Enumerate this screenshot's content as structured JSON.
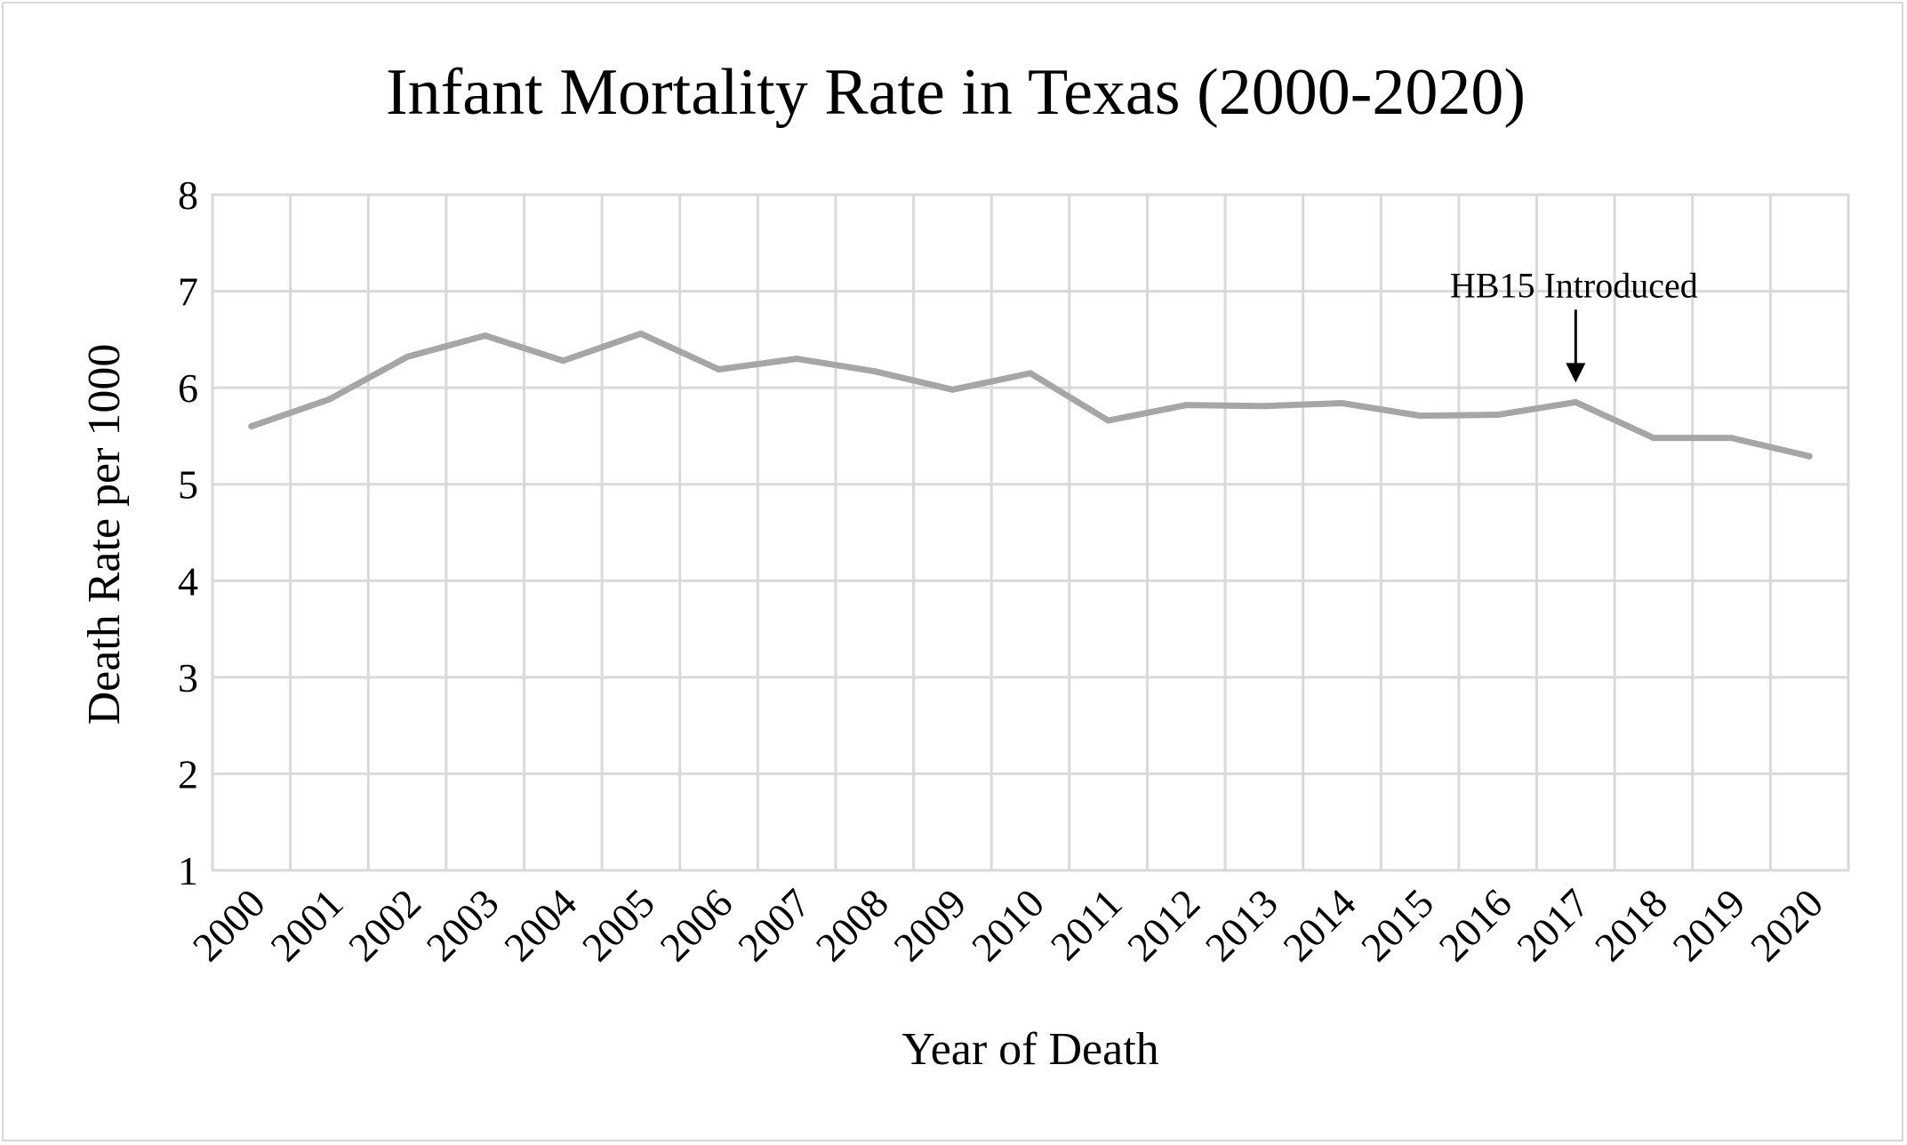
{
  "chart_data": {
    "type": "line",
    "title": "Infant Mortality Rate in Texas (2000-2020)",
    "xlabel": "Year of Death",
    "ylabel": "Death Rate per 1000",
    "ylim": [
      1,
      8
    ],
    "y_ticks": [
      "1",
      "2",
      "3",
      "4",
      "5",
      "6",
      "7",
      "8"
    ],
    "categories": [
      "2000",
      "2001",
      "2002",
      "2003",
      "2004",
      "2005",
      "2006",
      "2007",
      "2008",
      "2009",
      "2010",
      "2011",
      "2012",
      "2013",
      "2014",
      "2015",
      "2016",
      "2017",
      "2018",
      "2019",
      "2020"
    ],
    "series": [
      {
        "values": [
          5.6,
          5.88,
          6.32,
          6.54,
          6.28,
          6.56,
          6.19,
          6.3,
          6.17,
          5.98,
          6.15,
          5.66,
          5.82,
          5.81,
          5.84,
          5.71,
          5.72,
          5.85,
          5.48,
          5.48,
          5.29
        ],
        "color": "#a6a6a6"
      }
    ],
    "grid": true,
    "legend": "none",
    "annotations": [
      {
        "text": "HB15 Introduced",
        "x": "2017",
        "arrow": "down"
      }
    ]
  }
}
